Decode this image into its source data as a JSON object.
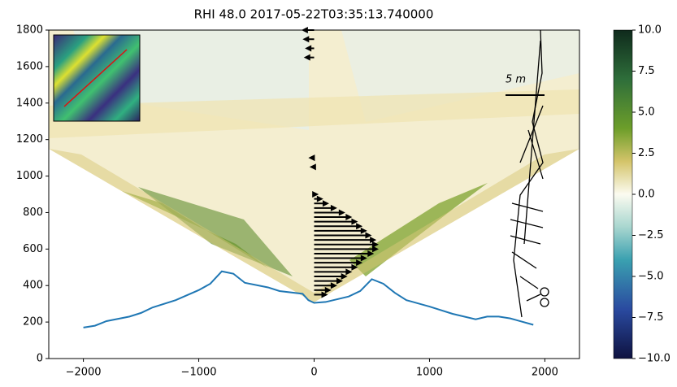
{
  "chart_data": {
    "type": "line",
    "title": "RHI 48.0 2017-05-22T03:35:13.740000",
    "annotation": "5 m",
    "x": [
      -2000,
      -1900,
      -1800,
      -1600,
      -1500,
      -1400,
      -1200,
      -1000,
      -900,
      -800,
      -700,
      -600,
      -400,
      -300,
      -100,
      -50,
      0,
      100,
      300,
      400,
      500,
      600,
      700,
      800,
      1000,
      1200,
      1400,
      1500,
      1600,
      1700,
      1900
    ],
    "series": [
      {
        "color": "#1f77b4",
        "values": [
          170,
          180,
          205,
          230,
          250,
          280,
          320,
          375,
          410,
          478,
          465,
          415,
          390,
          370,
          355,
          320,
          305,
          310,
          340,
          370,
          435,
          410,
          360,
          320,
          285,
          245,
          215,
          230,
          230,
          220,
          185
        ]
      }
    ],
    "quiver": {
      "heights": [
        350,
        375,
        400,
        425,
        450,
        475,
        500,
        525,
        550,
        575,
        600,
        625,
        650,
        675,
        700,
        725,
        750,
        775,
        800,
        825,
        850,
        875,
        900,
        1050,
        1100,
        1650,
        1700,
        1750,
        1800
      ],
      "u": [
        120,
        150,
        200,
        250,
        290,
        330,
        380,
        420,
        460,
        520,
        560,
        560,
        540,
        500,
        460,
        420,
        380,
        330,
        270,
        200,
        130,
        80,
        40,
        -40,
        -50,
        -90,
        -80,
        -100,
        -110
      ],
      "color": "#000000"
    },
    "xlim": [
      -2300,
      2300
    ],
    "xticks": [
      {
        "value": -2000,
        "label": "−2000"
      },
      {
        "value": -1000,
        "label": "−1000"
      },
      0,
      1000,
      2000
    ],
    "ylim": [
      0,
      1800
    ],
    "yticks": [
      0,
      200,
      400,
      600,
      800,
      1000,
      1200,
      1400,
      1600,
      1800
    ],
    "colorbar": {
      "lim": [
        -10,
        10
      ],
      "ticks": [
        {
          "value": -10,
          "label": "−10.0"
        },
        {
          "value": -7.5,
          "label": "−7.5"
        },
        {
          "value": -5,
          "label": "−5.0"
        },
        {
          "value": -2.5,
          "label": "−2.5"
        },
        {
          "value": 0,
          "label": "0.0"
        },
        {
          "value": 2.5,
          "label": "2.5"
        },
        {
          "value": 5,
          "label": "5.0"
        },
        {
          "value": 7.5,
          "label": "7.5"
        },
        {
          "value": 10,
          "label": "10.0"
        }
      ]
    }
  }
}
